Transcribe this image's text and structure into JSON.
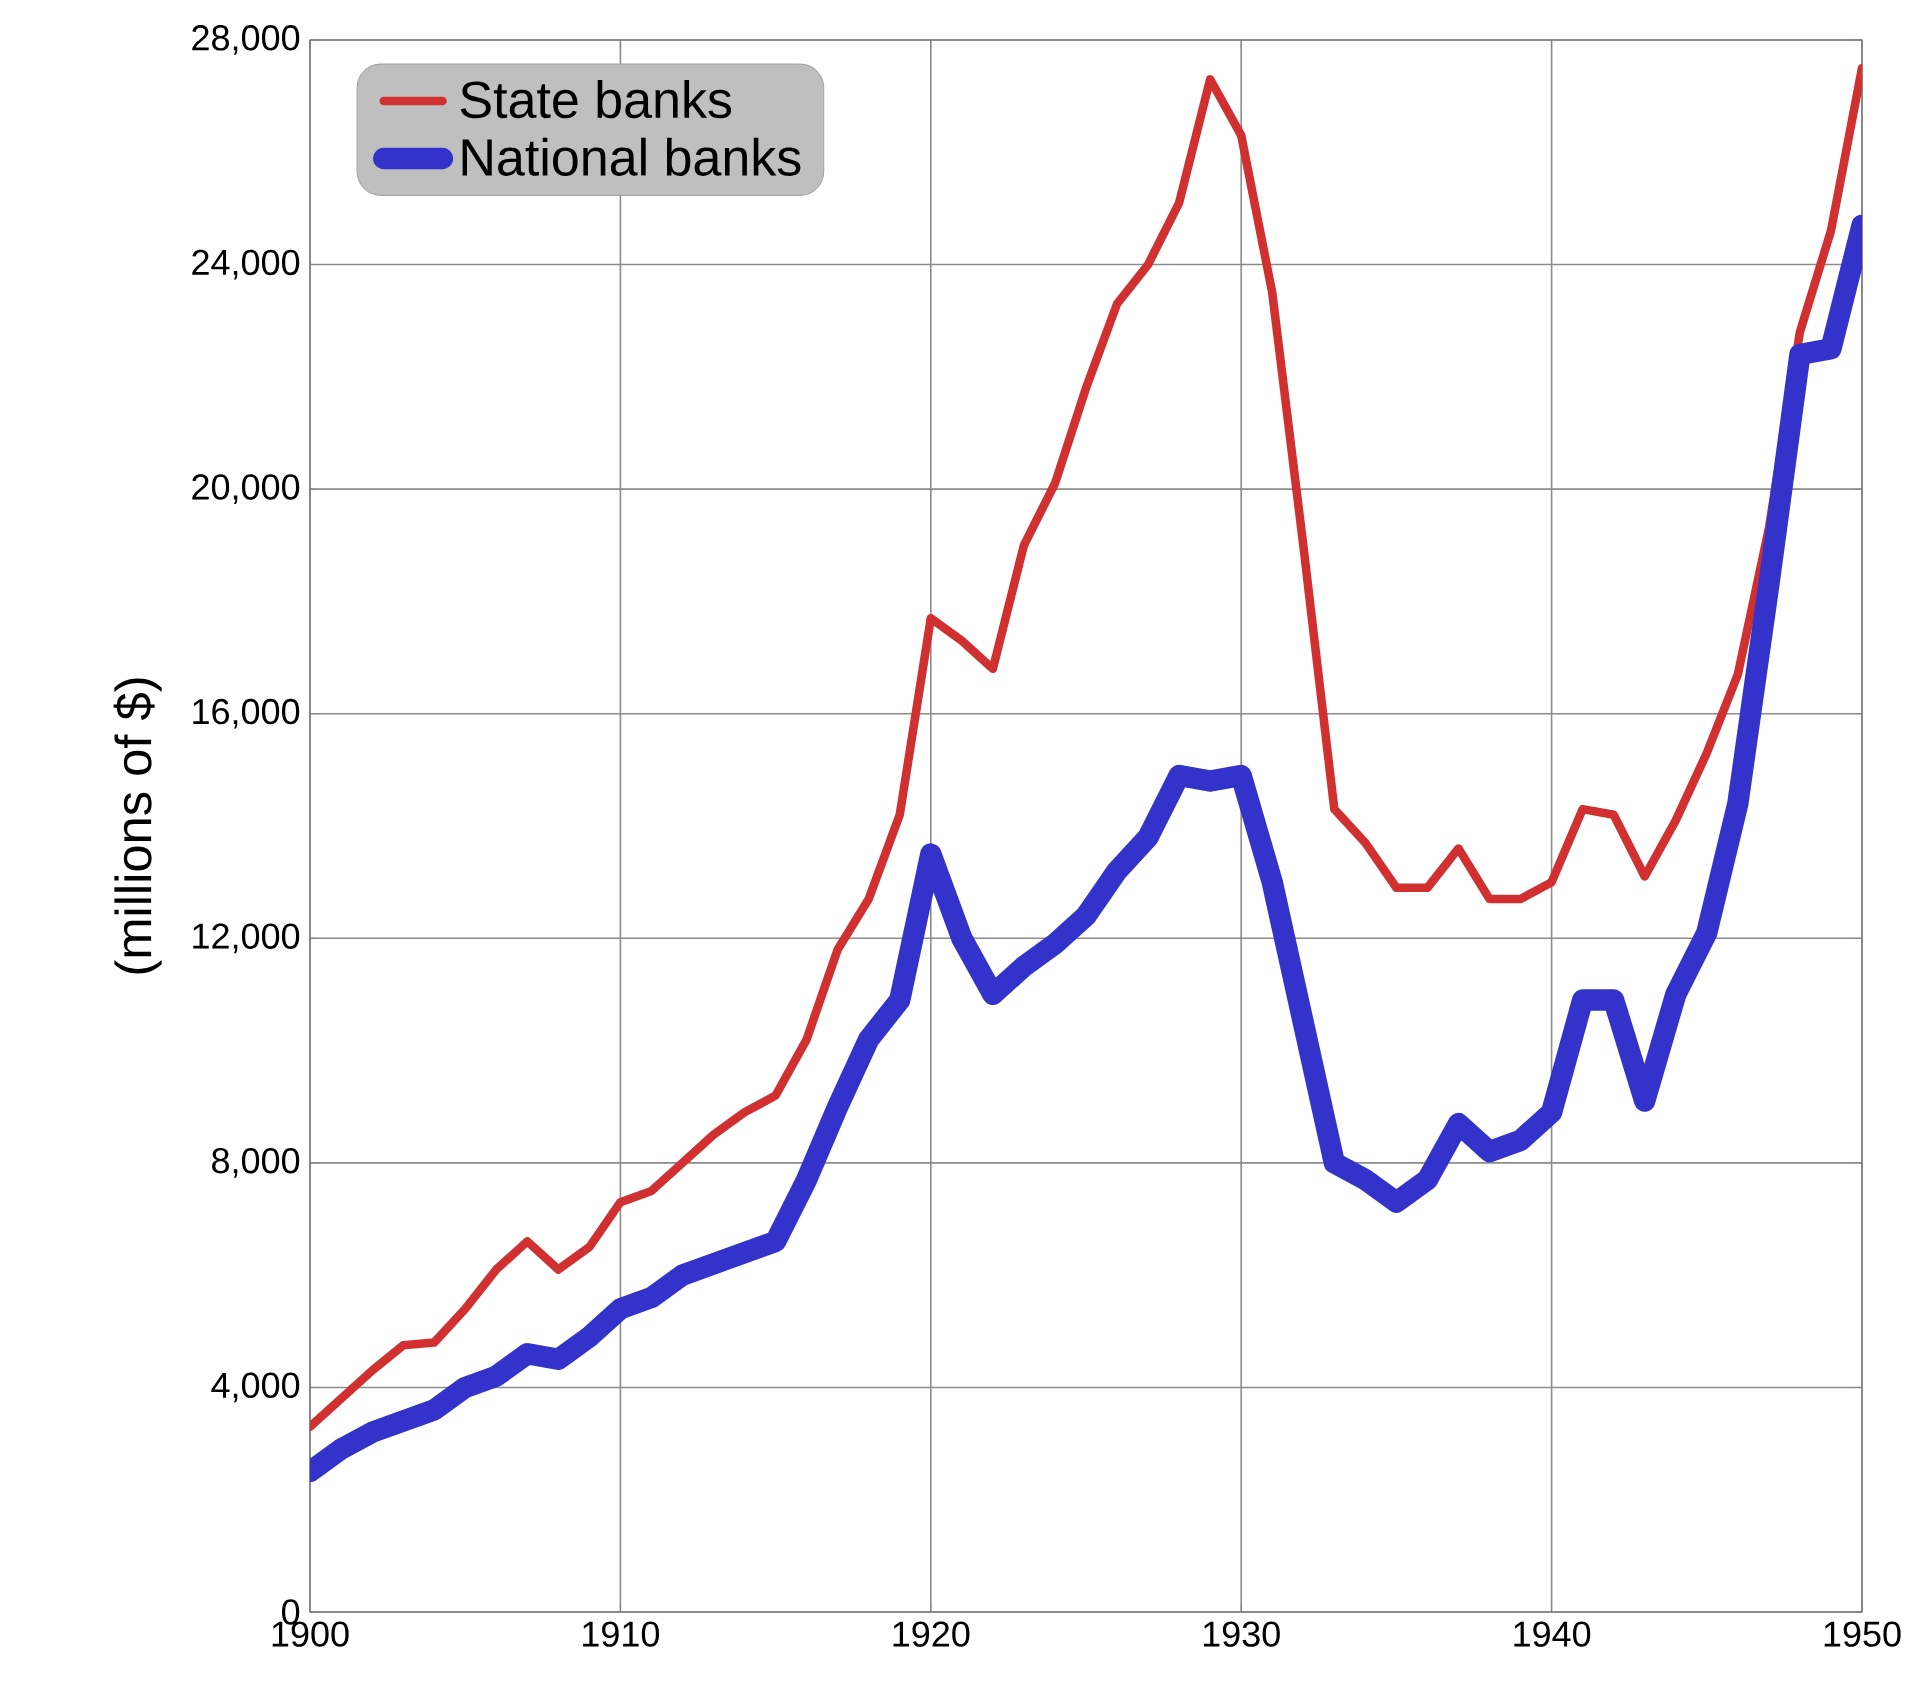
{
  "chart_data": {
    "type": "line",
    "ylabel": "(millions of $)",
    "x": [
      1900,
      1901,
      1902,
      1903,
      1904,
      1905,
      1906,
      1907,
      1908,
      1909,
      1910,
      1911,
      1912,
      1913,
      1914,
      1915,
      1916,
      1917,
      1918,
      1919,
      1920,
      1921,
      1922,
      1923,
      1924,
      1925,
      1926,
      1927,
      1928,
      1929,
      1930,
      1931,
      1932,
      1933,
      1934,
      1935,
      1936,
      1937,
      1938,
      1939,
      1940,
      1941,
      1942,
      1943,
      1944,
      1945,
      1946,
      1947,
      1948,
      1949,
      1950
    ],
    "xlim": [
      1900,
      1950
    ],
    "xticks": [
      1900,
      1910,
      1920,
      1930,
      1940,
      1950
    ],
    "ylim": [
      0,
      28000
    ],
    "yticks": [
      {
        "value": 0,
        "label": "0"
      },
      {
        "value": 4000,
        "label": "4,000"
      },
      {
        "value": 8000,
        "label": "8,000"
      },
      {
        "value": 12000,
        "label": "12,000"
      },
      {
        "value": 16000,
        "label": "16,000"
      },
      {
        "value": 20000,
        "label": "20,000"
      },
      {
        "value": 24000,
        "label": "24,000"
      },
      {
        "value": 28000,
        "label": "28,000"
      }
    ],
    "grid": true,
    "legend": "top left",
    "marker": "none",
    "line_style": "solid",
    "series": [
      {
        "name": "State banks",
        "color": "#d03030",
        "values": [
          3300,
          3800,
          4300,
          4750,
          4800,
          5400,
          6100,
          6600,
          6100,
          6500,
          7300,
          7500,
          8000,
          8500,
          8900,
          9200,
          10200,
          11800,
          12700,
          14200,
          17700,
          17300,
          16800,
          19000,
          20100,
          21800,
          23300,
          24000,
          25100,
          27300,
          26300,
          23500,
          19000,
          14300,
          13700,
          12900,
          12900,
          13600,
          12700,
          12700,
          13000,
          14300,
          14200,
          13100,
          14100,
          15300,
          16700,
          19300,
          22800,
          24600,
          27500
        ]
      },
      {
        "name": "National banks",
        "color": "#3333cc",
        "values": [
          2500,
          2900,
          3200,
          3400,
          3600,
          4000,
          4200,
          4600,
          4500,
          4900,
          5400,
          5600,
          6000,
          6200,
          6400,
          6600,
          7700,
          9000,
          10200,
          10900,
          13500,
          12000,
          11000,
          11500,
          11900,
          12400,
          13200,
          13800,
          14900,
          14800,
          14900,
          13000,
          10500,
          8000,
          7700,
          7300,
          7700,
          8700,
          8200,
          8400,
          8900,
          10900,
          10900,
          9100,
          11000,
          12100,
          14400,
          18300,
          22400,
          22500,
          24700
        ]
      }
    ]
  }
}
